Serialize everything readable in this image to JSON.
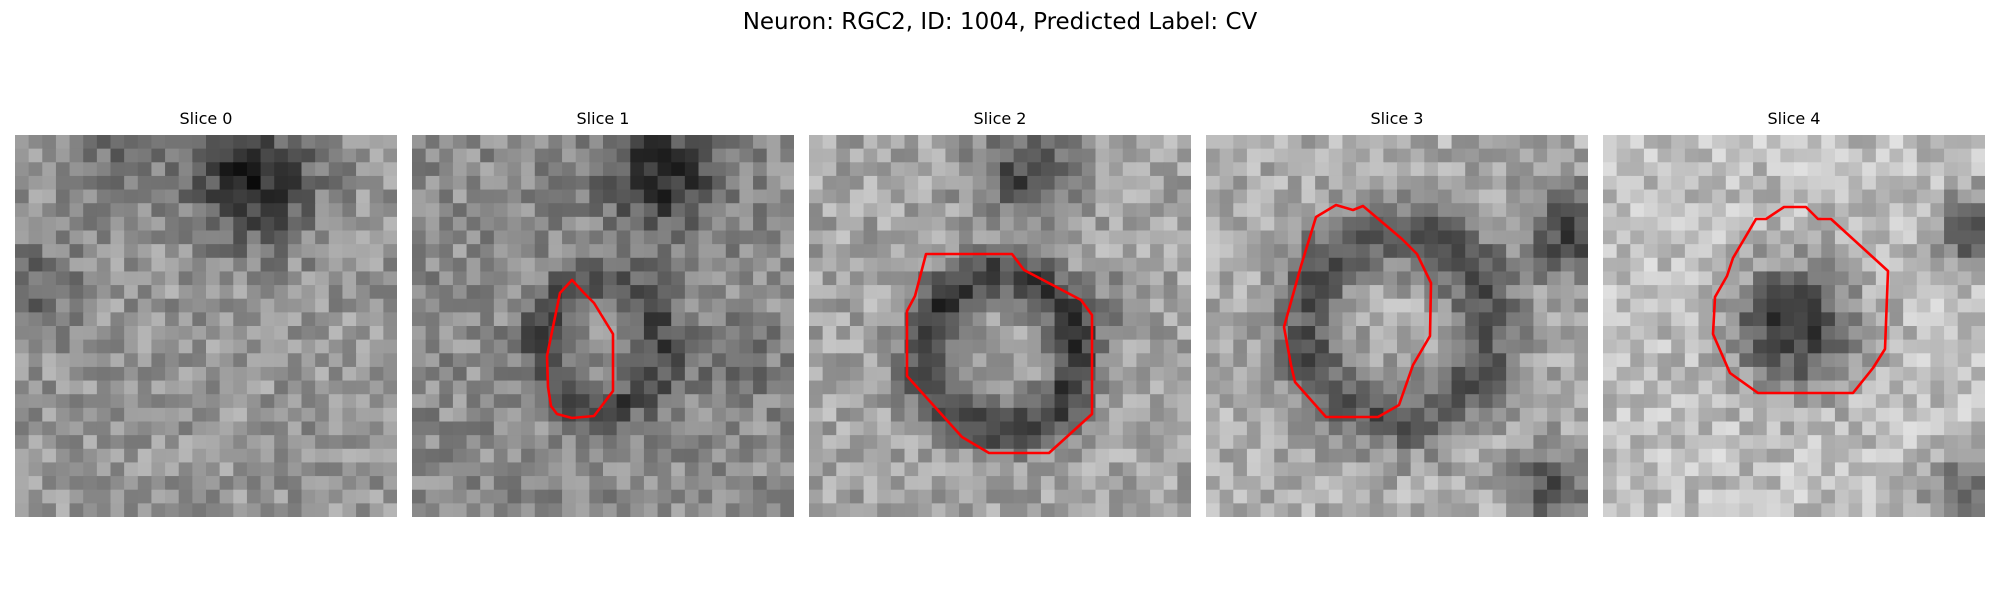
{
  "figure": {
    "title": "Neuron: RGC2, ID: 1004, Predicted Label: CV",
    "contour_color": "#ff0000"
  },
  "panels": [
    {
      "title": "Slice 0"
    },
    {
      "title": "Slice 1"
    },
    {
      "title": "Slice 2"
    },
    {
      "title": "Slice 3"
    },
    {
      "title": "Slice 4"
    }
  ]
}
